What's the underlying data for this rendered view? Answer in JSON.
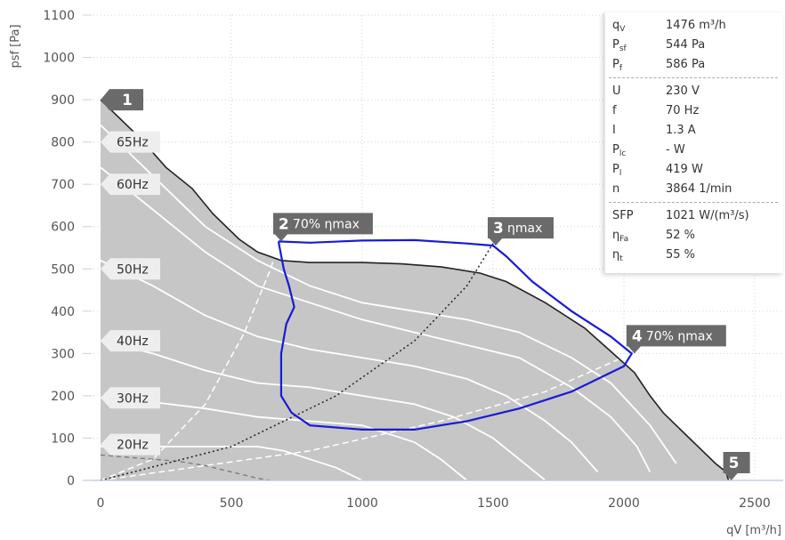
{
  "chart_data": {
    "type": "line",
    "xlabel": "qV [m³/h]",
    "ylabel": "psf [Pa]",
    "xlim": [
      0,
      2550
    ],
    "ylim": [
      0,
      1100
    ],
    "x_ticks": [
      "0",
      "500",
      "1000",
      "1500",
      "2000",
      "2500"
    ],
    "y_ticks": [
      "0",
      "100",
      "200",
      "300",
      "400",
      "500",
      "600",
      "700",
      "800",
      "900",
      "1000",
      "1100"
    ],
    "grid": true,
    "max_curve": {
      "color": "#222222",
      "points": [
        [
          0,
          900
        ],
        [
          50,
          870
        ],
        [
          150,
          810
        ],
        [
          250,
          740
        ],
        [
          350,
          690
        ],
        [
          430,
          630
        ],
        [
          530,
          570
        ],
        [
          600,
          540
        ],
        [
          690,
          520
        ],
        [
          800,
          515
        ],
        [
          1000,
          515
        ],
        [
          1150,
          512
        ],
        [
          1300,
          505
        ],
        [
          1450,
          490
        ],
        [
          1550,
          470
        ],
        [
          1700,
          420
        ],
        [
          1850,
          360
        ],
        [
          1950,
          305
        ],
        [
          2040,
          255
        ],
        [
          2100,
          200
        ],
        [
          2150,
          160
        ],
        [
          2200,
          130
        ],
        [
          2250,
          100
        ],
        [
          2300,
          70
        ],
        [
          2350,
          40
        ],
        [
          2390,
          20
        ],
        [
          2400,
          0
        ]
      ]
    },
    "frequency_curves": [
      {
        "name": "65Hz",
        "points": [
          [
            0,
            840
          ],
          [
            200,
            720
          ],
          [
            400,
            600
          ],
          [
            600,
            520
          ],
          [
            800,
            460
          ],
          [
            1000,
            420
          ],
          [
            1200,
            400
          ],
          [
            1400,
            380
          ],
          [
            1600,
            350
          ],
          [
            1800,
            290
          ],
          [
            1950,
            230
          ],
          [
            2100,
            130
          ],
          [
            2200,
            40
          ]
        ]
      },
      {
        "name": "60Hz",
        "points": [
          [
            0,
            740
          ],
          [
            200,
            640
          ],
          [
            400,
            540
          ],
          [
            600,
            460
          ],
          [
            800,
            420
          ],
          [
            1000,
            380
          ],
          [
            1200,
            350
          ],
          [
            1400,
            320
          ],
          [
            1600,
            290
          ],
          [
            1800,
            220
          ],
          [
            1950,
            150
          ],
          [
            2050,
            80
          ],
          [
            2100,
            20
          ]
        ]
      },
      {
        "name": "50Hz",
        "points": [
          [
            0,
            520
          ],
          [
            200,
            460
          ],
          [
            400,
            390
          ],
          [
            600,
            340
          ],
          [
            800,
            310
          ],
          [
            1000,
            290
          ],
          [
            1200,
            270
          ],
          [
            1400,
            240
          ],
          [
            1550,
            200
          ],
          [
            1700,
            140
          ],
          [
            1800,
            90
          ],
          [
            1900,
            20
          ]
        ]
      },
      {
        "name": "40Hz",
        "points": [
          [
            0,
            330
          ],
          [
            200,
            300
          ],
          [
            400,
            260
          ],
          [
            600,
            230
          ],
          [
            800,
            220
          ],
          [
            1000,
            200
          ],
          [
            1200,
            180
          ],
          [
            1350,
            150
          ],
          [
            1500,
            100
          ],
          [
            1600,
            50
          ],
          [
            1700,
            0
          ]
        ]
      },
      {
        "name": "30Hz",
        "points": [
          [
            0,
            195
          ],
          [
            200,
            185
          ],
          [
            400,
            170
          ],
          [
            600,
            150
          ],
          [
            800,
            140
          ],
          [
            1000,
            130
          ],
          [
            1100,
            110
          ],
          [
            1200,
            90
          ],
          [
            1300,
            50
          ],
          [
            1400,
            0
          ]
        ]
      },
      {
        "name": "20Hz",
        "points": [
          [
            0,
            80
          ],
          [
            200,
            80
          ],
          [
            400,
            80
          ],
          [
            600,
            80
          ],
          [
            700,
            70
          ],
          [
            800,
            50
          ],
          [
            900,
            30
          ],
          [
            1000,
            0
          ]
        ]
      }
    ],
    "low_dash_curve": {
      "color": "#777777",
      "points": [
        [
          0,
          60
        ],
        [
          100,
          55
        ],
        [
          200,
          50
        ],
        [
          300,
          45
        ],
        [
          400,
          35
        ],
        [
          500,
          20
        ],
        [
          600,
          5
        ],
        [
          650,
          0
        ]
      ]
    },
    "eff70_left": {
      "label": "70% ηmax",
      "color": "#ffffff",
      "points": [
        [
          0,
          0
        ],
        [
          200,
          50
        ],
        [
          400,
          180
        ],
        [
          550,
          350
        ],
        [
          650,
          500
        ],
        [
          680,
          560
        ]
      ]
    },
    "eff_max": {
      "label": "ηmax",
      "color": "#222222",
      "points": [
        [
          0,
          0
        ],
        [
          500,
          80
        ],
        [
          900,
          200
        ],
        [
          1200,
          330
        ],
        [
          1400,
          460
        ],
        [
          1500,
          560
        ]
      ]
    },
    "eff70_right": {
      "label": "70% ηmax",
      "color": "#ffffff",
      "points": [
        [
          0,
          0
        ],
        [
          800,
          70
        ],
        [
          1300,
          140
        ],
        [
          1700,
          210
        ],
        [
          2030,
          300
        ]
      ]
    },
    "operating_region": {
      "color": "#1a1ad6",
      "points": [
        [
          680,
          565
        ],
        [
          700,
          500
        ],
        [
          720,
          460
        ],
        [
          740,
          410
        ],
        [
          710,
          370
        ],
        [
          690,
          300
        ],
        [
          690,
          200
        ],
        [
          730,
          160
        ],
        [
          800,
          130
        ],
        [
          1000,
          120
        ],
        [
          1200,
          120
        ],
        [
          1400,
          140
        ],
        [
          1600,
          170
        ],
        [
          1800,
          210
        ],
        [
          2000,
          270
        ],
        [
          2030,
          300
        ],
        [
          1950,
          340
        ],
        [
          1800,
          400
        ],
        [
          1650,
          470
        ],
        [
          1550,
          530
        ],
        [
          1500,
          555
        ],
        [
          1400,
          560
        ],
        [
          1200,
          568
        ],
        [
          1000,
          567
        ],
        [
          800,
          562
        ],
        [
          680,
          565
        ]
      ]
    },
    "markers": [
      {
        "num": "1",
        "text": "",
        "x": 0,
        "y": 900
      },
      {
        "num": "2",
        "text": "70% ηmax",
        "x": 680,
        "y": 565
      },
      {
        "num": "3",
        "text": "ηmax",
        "x": 1500,
        "y": 555
      },
      {
        "num": "4",
        "text": "70% ηmax",
        "x": 2030,
        "y": 300
      },
      {
        "num": "5",
        "text": "",
        "x": 2400,
        "y": 0
      }
    ],
    "freq_tags": [
      {
        "text": "65Hz",
        "y": 800
      },
      {
        "text": "60Hz",
        "y": 700
      },
      {
        "text": "50Hz",
        "y": 500
      },
      {
        "text": "40Hz",
        "y": 330
      },
      {
        "text": "30Hz",
        "y": 195
      },
      {
        "text": "20Hz",
        "y": 85
      }
    ]
  },
  "info_panel": [
    {
      "sym": "q",
      "sub": "V",
      "value": "1476 m³/h"
    },
    {
      "sym": "P",
      "sub": "sf",
      "value": "544 Pa"
    },
    {
      "sym": "P",
      "sub": "f",
      "value": "586 Pa"
    },
    {
      "sym": "U",
      "sub": "",
      "value": "230 V"
    },
    {
      "sym": "f",
      "sub": "",
      "value": "70 Hz"
    },
    {
      "sym": "I",
      "sub": "",
      "value": "1.3 A"
    },
    {
      "sym": "P",
      "sub": "lc",
      "value": "- W"
    },
    {
      "sym": "P",
      "sub": "l",
      "value": "419 W"
    },
    {
      "sym": "n",
      "sub": "",
      "value": "3864 1/min"
    },
    {
      "sym": "SFP",
      "sub": "",
      "value": "1021 W/(m³/s)"
    },
    {
      "sym": "η",
      "sub": "Fa",
      "value": "52 %"
    },
    {
      "sym": "η",
      "sub": "t",
      "value": "55 %"
    }
  ]
}
